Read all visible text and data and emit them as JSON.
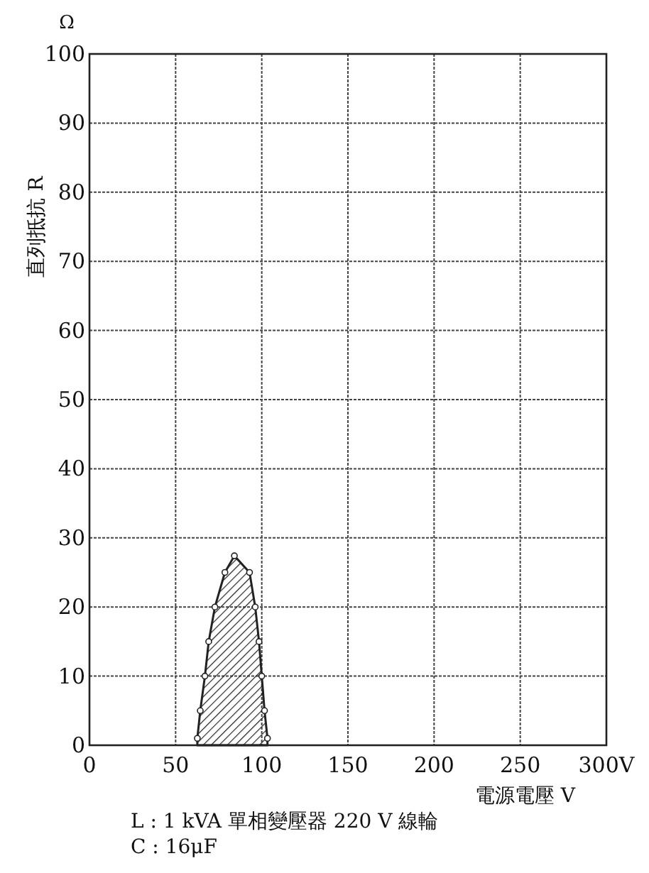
{
  "chart_data": {
    "type": "area",
    "xlabel": "電源電壓 V",
    "ylabel": "直列抵抗 R",
    "annotations": [
      "Ω",
      "L : 1 kVA 單相變壓器 220 V 線輪",
      "C : 16μF"
    ],
    "series": [
      {
        "color": "#222222",
        "x": [
          62.6,
          64.3,
          67,
          69.2,
          72.8,
          78.6,
          84.1,
          92.9,
          96.2,
          98.4,
          100,
          101.6,
          103.3
        ],
        "values": [
          1,
          5,
          10,
          15,
          20,
          25,
          27.4,
          25,
          20,
          15,
          10,
          5,
          1
        ]
      }
    ],
    "xlim": [
      0,
      300
    ],
    "xticks": [
      0,
      50,
      100,
      150,
      200,
      250,
      {
        "value": 300,
        "label": "300V"
      }
    ],
    "ylim": [
      0,
      100
    ],
    "yticks": [
      0,
      10,
      20,
      30,
      40,
      50,
      60,
      70,
      80,
      90,
      100
    ],
    "grid": true,
    "marker": "circle"
  }
}
